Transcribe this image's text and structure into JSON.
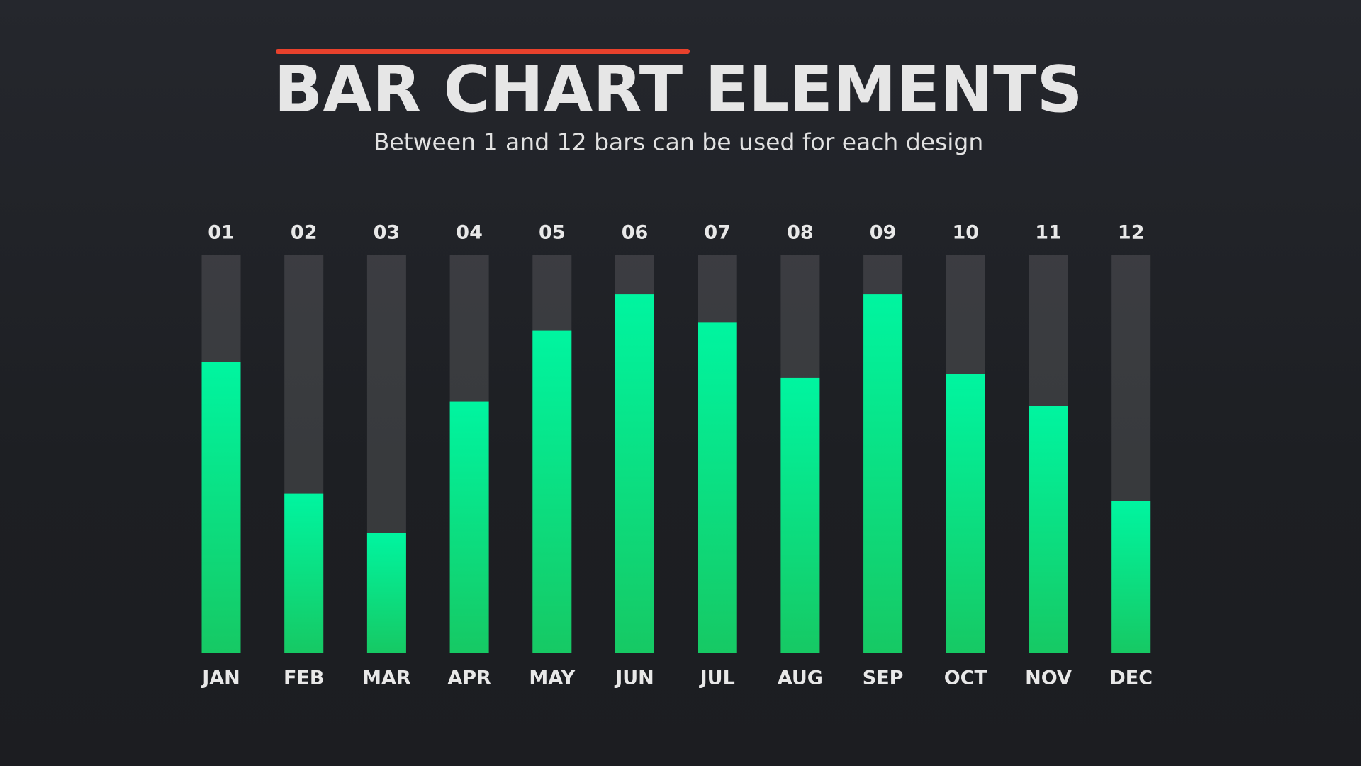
{
  "chart_data": {
    "type": "bar",
    "title": "BAR CHART ELEMENTS",
    "subtitle": "Between 1 and 12 bars can be used for each design",
    "categories": [
      "JAN",
      "FEB",
      "MAR",
      "APR",
      "MAY",
      "JUN",
      "JUL",
      "AUG",
      "SEP",
      "OCT",
      "NOV",
      "DEC"
    ],
    "bar_numbers": [
      "01",
      "02",
      "03",
      "04",
      "05",
      "06",
      "07",
      "08",
      "09",
      "10",
      "11",
      "12"
    ],
    "values": [
      73,
      40,
      30,
      63,
      81,
      90,
      83,
      69,
      90,
      70,
      62,
      38
    ],
    "ylim": [
      0,
      100
    ],
    "color": "#16c964"
  }
}
